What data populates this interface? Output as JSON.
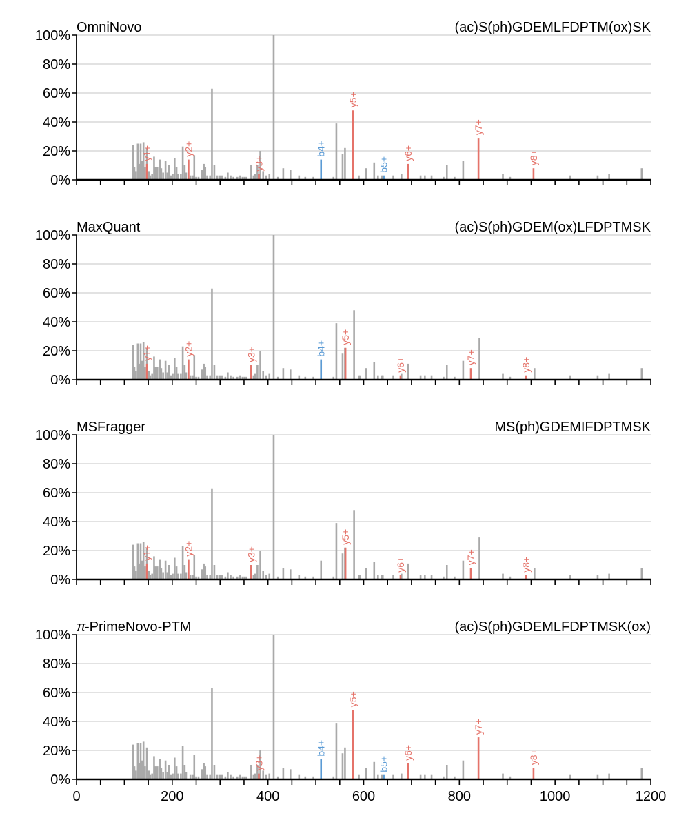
{
  "colors": {
    "peak": "#a9a9a9",
    "y_ion": "#e5736a",
    "b_ion": "#5b9bd5",
    "grid": "#d0d0d0",
    "axis": "#000000"
  },
  "chart_data": [
    {
      "type": "bar",
      "tool": "OmniNovo",
      "peptide": "(ac)S(ph)GDEMLFDPTM(ox)SK",
      "ylim": [
        0,
        100
      ],
      "yticks": [
        "0%",
        "20%",
        "40%",
        "60%",
        "80%",
        "100%"
      ],
      "grid": true,
      "annotations": [
        {
          "label": "y1+",
          "x": 147,
          "y": 11,
          "ion": "y"
        },
        {
          "label": "y2+",
          "x": 234,
          "y": 14,
          "ion": "y"
        },
        {
          "label": "y3+",
          "x": 381,
          "y": 4,
          "ion": "y"
        },
        {
          "label": "b4+",
          "x": 511,
          "y": 14,
          "ion": "b"
        },
        {
          "label": "y5+",
          "x": 578,
          "y": 48,
          "ion": "y"
        },
        {
          "label": "b5+",
          "x": 642,
          "y": 3,
          "ion": "b"
        },
        {
          "label": "y6+",
          "x": 693,
          "y": 11,
          "ion": "y"
        },
        {
          "label": "y7+",
          "x": 840,
          "y": 29,
          "ion": "y"
        },
        {
          "label": "y8+",
          "x": 955,
          "y": 8,
          "ion": "y"
        }
      ]
    },
    {
      "type": "bar",
      "tool": "MaxQuant",
      "peptide": "(ac)S(ph)GDEM(ox)LFDPTMSK",
      "ylim": [
        0,
        100
      ],
      "yticks": [
        "0%",
        "20%",
        "40%",
        "60%",
        "80%",
        "100%"
      ],
      "grid": true,
      "annotations": [
        {
          "label": "y1+",
          "x": 147,
          "y": 11,
          "ion": "y"
        },
        {
          "label": "y2+",
          "x": 234,
          "y": 14,
          "ion": "y"
        },
        {
          "label": "y3+",
          "x": 365,
          "y": 10,
          "ion": "y"
        },
        {
          "label": "b4+",
          "x": 511,
          "y": 14,
          "ion": "b"
        },
        {
          "label": "y5+",
          "x": 562,
          "y": 22,
          "ion": "y"
        },
        {
          "label": "y6+",
          "x": 677,
          "y": 3,
          "ion": "y"
        },
        {
          "label": "y7+",
          "x": 824,
          "y": 8,
          "ion": "y"
        },
        {
          "label": "y8+",
          "x": 939,
          "y": 3,
          "ion": "y"
        }
      ]
    },
    {
      "type": "bar",
      "tool": "MSFragger",
      "peptide": "MS(ph)GDEMIFDPTMSK",
      "ylim": [
        0,
        100
      ],
      "yticks": [
        "0%",
        "20%",
        "40%",
        "60%",
        "80%",
        "100%"
      ],
      "grid": true,
      "annotations": [
        {
          "label": "y1+",
          "x": 147,
          "y": 11,
          "ion": "y"
        },
        {
          "label": "y2+",
          "x": 234,
          "y": 14,
          "ion": "y"
        },
        {
          "label": "y3+",
          "x": 365,
          "y": 10,
          "ion": "y"
        },
        {
          "label": "y5+",
          "x": 562,
          "y": 22,
          "ion": "y"
        },
        {
          "label": "y6+",
          "x": 677,
          "y": 3,
          "ion": "y"
        },
        {
          "label": "y7+",
          "x": 824,
          "y": 8,
          "ion": "y"
        },
        {
          "label": "y8+",
          "x": 939,
          "y": 3,
          "ion": "y"
        }
      ]
    },
    {
      "type": "bar",
      "tool": "-PrimeNovo-PTM",
      "tool_prefix": "π",
      "peptide": "(ac)S(ph)GDEMLFDPTMSK(ox)",
      "ylim": [
        0,
        100
      ],
      "yticks": [
        "0%",
        "20%",
        "40%",
        "60%",
        "80%",
        "100%"
      ],
      "xticks": [
        "0",
        "200",
        "400",
        "600",
        "800",
        "1000",
        "1200"
      ],
      "grid": true,
      "annotations": [
        {
          "label": "y3+",
          "x": 381,
          "y": 4,
          "ion": "y"
        },
        {
          "label": "b4+",
          "x": 511,
          "y": 14,
          "ion": "b"
        },
        {
          "label": "y5+",
          "x": 578,
          "y": 48,
          "ion": "y"
        },
        {
          "label": "b5+",
          "x": 642,
          "y": 3,
          "ion": "b"
        },
        {
          "label": "y6+",
          "x": 693,
          "y": 11,
          "ion": "y"
        },
        {
          "label": "y7+",
          "x": 840,
          "y": 29,
          "ion": "y"
        },
        {
          "label": "y8+",
          "x": 955,
          "y": 8,
          "ion": "y"
        }
      ]
    }
  ],
  "spectrum_peaks": [
    [
      118,
      24
    ],
    [
      121,
      9
    ],
    [
      124,
      6
    ],
    [
      128,
      25
    ],
    [
      131,
      11
    ],
    [
      134,
      25
    ],
    [
      137,
      13
    ],
    [
      140,
      26
    ],
    [
      143,
      9
    ],
    [
      147,
      22
    ],
    [
      151,
      6
    ],
    [
      154,
      3
    ],
    [
      158,
      4
    ],
    [
      162,
      16
    ],
    [
      165,
      9
    ],
    [
      169,
      9
    ],
    [
      174,
      14
    ],
    [
      177,
      8
    ],
    [
      181,
      5
    ],
    [
      186,
      13
    ],
    [
      190,
      5
    ],
    [
      193,
      10
    ],
    [
      197,
      3
    ],
    [
      201,
      4
    ],
    [
      205,
      15
    ],
    [
      209,
      9
    ],
    [
      212,
      4
    ],
    [
      218,
      4
    ],
    [
      222,
      23
    ],
    [
      226,
      10
    ],
    [
      229,
      5
    ],
    [
      238,
      3
    ],
    [
      243,
      3
    ],
    [
      246,
      17
    ],
    [
      250,
      2
    ],
    [
      255,
      2
    ],
    [
      262,
      7
    ],
    [
      266,
      11
    ],
    [
      269,
      9
    ],
    [
      273,
      3
    ],
    [
      279,
      3
    ],
    [
      283,
      63
    ],
    [
      288,
      10
    ],
    [
      294,
      3
    ],
    [
      300,
      3
    ],
    [
      304,
      3
    ],
    [
      311,
      2
    ],
    [
      316,
      5
    ],
    [
      322,
      3
    ],
    [
      328,
      2
    ],
    [
      336,
      2
    ],
    [
      342,
      3
    ],
    [
      347,
      2
    ],
    [
      351,
      2
    ],
    [
      355,
      2
    ],
    [
      365,
      10
    ],
    [
      370,
      3
    ],
    [
      373,
      4
    ],
    [
      378,
      10
    ],
    [
      384,
      20
    ],
    [
      390,
      6
    ],
    [
      396,
      3
    ],
    [
      403,
      4
    ],
    [
      412,
      100
    ],
    [
      421,
      2
    ],
    [
      432,
      8
    ],
    [
      447,
      7
    ],
    [
      465,
      3
    ],
    [
      478,
      2
    ],
    [
      495,
      2
    ],
    [
      537,
      2
    ],
    [
      543,
      39
    ],
    [
      556,
      18
    ],
    [
      561,
      22
    ],
    [
      590,
      3
    ],
    [
      605,
      8
    ],
    [
      622,
      12
    ],
    [
      630,
      3
    ],
    [
      638,
      3
    ],
    [
      662,
      3
    ],
    [
      679,
      4
    ],
    [
      719,
      3
    ],
    [
      728,
      3
    ],
    [
      742,
      3
    ],
    [
      767,
      2
    ],
    [
      774,
      10
    ],
    [
      790,
      2
    ],
    [
      808,
      13
    ],
    [
      891,
      4
    ],
    [
      906,
      2
    ],
    [
      1032,
      3
    ],
    [
      1089,
      3
    ],
    [
      1113,
      4
    ],
    [
      1181,
      8
    ]
  ],
  "spectrum_peaks_panel2": [
    [
      511,
      13
    ],
    [
      580,
      48
    ],
    [
      593,
      3
    ],
    [
      640,
      3
    ],
    [
      693,
      11
    ],
    [
      842,
      29
    ],
    [
      957,
      8
    ]
  ],
  "spectrum_peaks_panel3": [
    [
      511,
      13
    ],
    [
      580,
      48
    ],
    [
      593,
      3
    ],
    [
      640,
      3
    ],
    [
      693,
      11
    ],
    [
      842,
      29
    ],
    [
      957,
      8
    ]
  ]
}
